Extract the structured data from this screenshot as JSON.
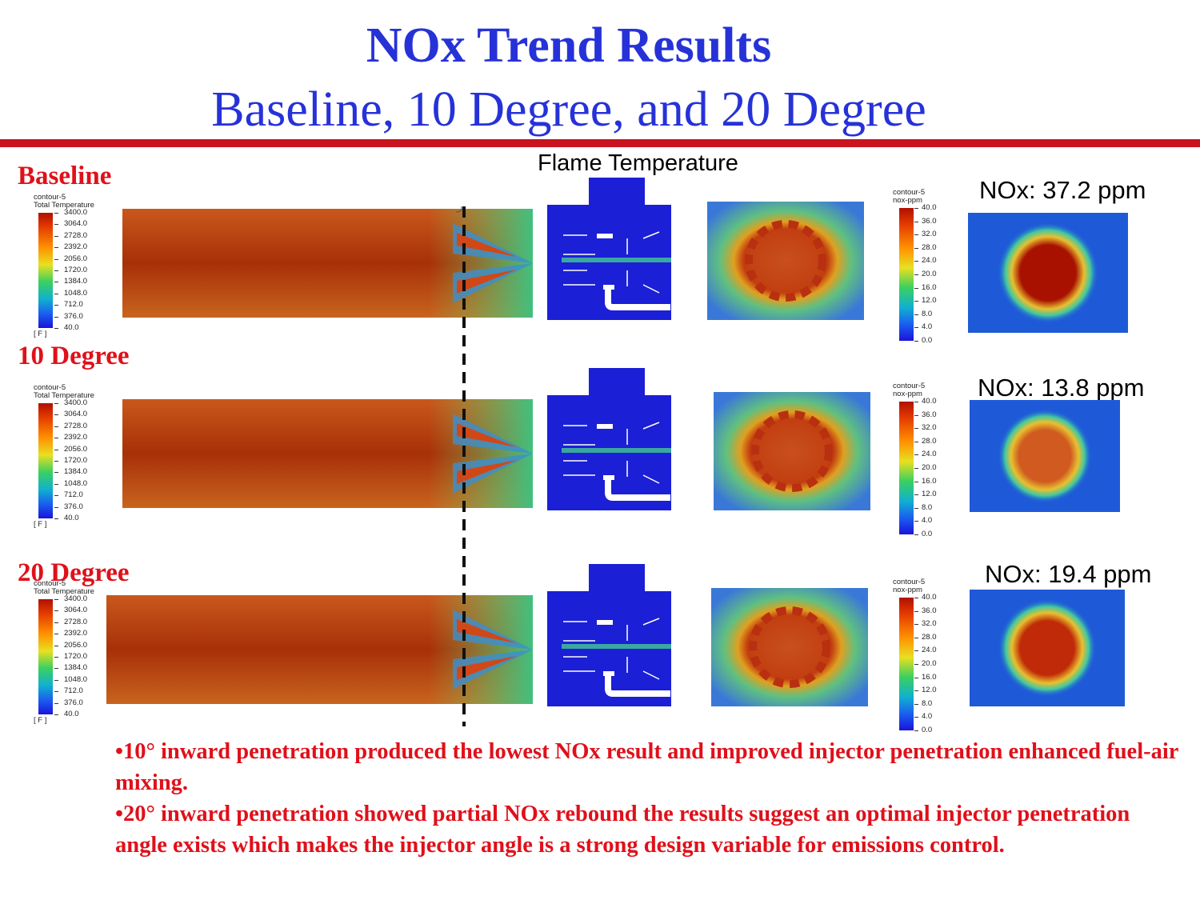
{
  "slide": {
    "title": "NOx Trend Results",
    "subtitle": "Baseline, 10 Degree, and 20 Degree"
  },
  "flame_temperature_label": "Flame Temperature",
  "temperature_legend": {
    "title_line1": "contour-5",
    "title_line2": "Total Temperature",
    "ticks": [
      "3400.0",
      "3064.0",
      "2728.0",
      "2392.0",
      "2056.0",
      "1720.0",
      "1384.0",
      "1048.0",
      "712.0",
      "376.0",
      "40.0"
    ],
    "unit": "[ F ]"
  },
  "nox_legend": {
    "title_line1": "contour-5",
    "title_line2": "nox-ppm",
    "ticks": [
      "40.0",
      "36.0",
      "32.0",
      "28.0",
      "24.0",
      "20.0",
      "16.0",
      "12.0",
      "8.0",
      "4.0",
      "0.0"
    ]
  },
  "cases": [
    {
      "label": "Baseline",
      "nox_text": "NOx: 37.2 ppm",
      "nox_ppm": 37.2
    },
    {
      "label": "10 Degree",
      "nox_text": "NOx: 13.8 ppm",
      "nox_ppm": 13.8
    },
    {
      "label": "20 Degree",
      "nox_text": "NOx: 19.4 ppm",
      "nox_ppm": 19.4
    }
  ],
  "bullets": [
    "•10° inward penetration produced the lowest NOx result and improved injector penetration enhanced fuel-air mixing.",
    "•20° inward penetration showed partial NOx rebound the results suggest an optimal injector penetration angle exists which makes the injector angle is a strong design variable for emissions control."
  ],
  "colors": {
    "title": "#2632d8",
    "rule": "#c8141e",
    "case_label": "#e0101a",
    "bullet_text": "#e0101a"
  }
}
